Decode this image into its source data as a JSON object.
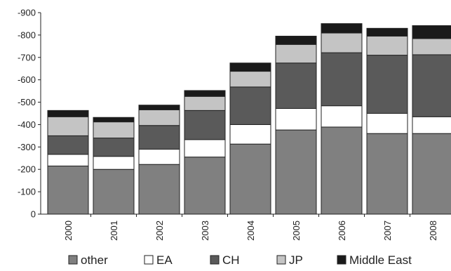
{
  "chart_data": {
    "type": "bar",
    "stacked": true,
    "categories": [
      "2000",
      "2001",
      "2002",
      "2003",
      "2004",
      "2005",
      "2006",
      "2007",
      "2008"
    ],
    "series": [
      {
        "name": "other",
        "color": "#808080",
        "values": [
          215,
          200,
          222,
          255,
          313,
          376,
          389,
          360,
          360
        ]
      },
      {
        "name": "EA",
        "color": "#ffffff",
        "values": [
          52,
          58,
          68,
          78,
          87,
          96,
          95,
          90,
          75
        ]
      },
      {
        "name": "CH",
        "color": "#5a5a5a",
        "values": [
          83,
          82,
          106,
          130,
          168,
          203,
          237,
          260,
          277
        ]
      },
      {
        "name": "JP",
        "color": "#c4c4c4",
        "values": [
          85,
          72,
          70,
          63,
          70,
          83,
          88,
          85,
          72
        ]
      },
      {
        "name": "Middle East",
        "color": "#1a1a1a",
        "values": [
          28,
          20,
          21,
          26,
          37,
          37,
          42,
          35,
          58
        ]
      }
    ],
    "yticks": [
      "0",
      "-100",
      "-200",
      "-300",
      "-400",
      "-500",
      "-600",
      "-700",
      "-800",
      "-900"
    ],
    "ylim": [
      0,
      900
    ],
    "grid": false,
    "legend": "bottom",
    "title": "",
    "xlabel": "",
    "ylabel": ""
  }
}
